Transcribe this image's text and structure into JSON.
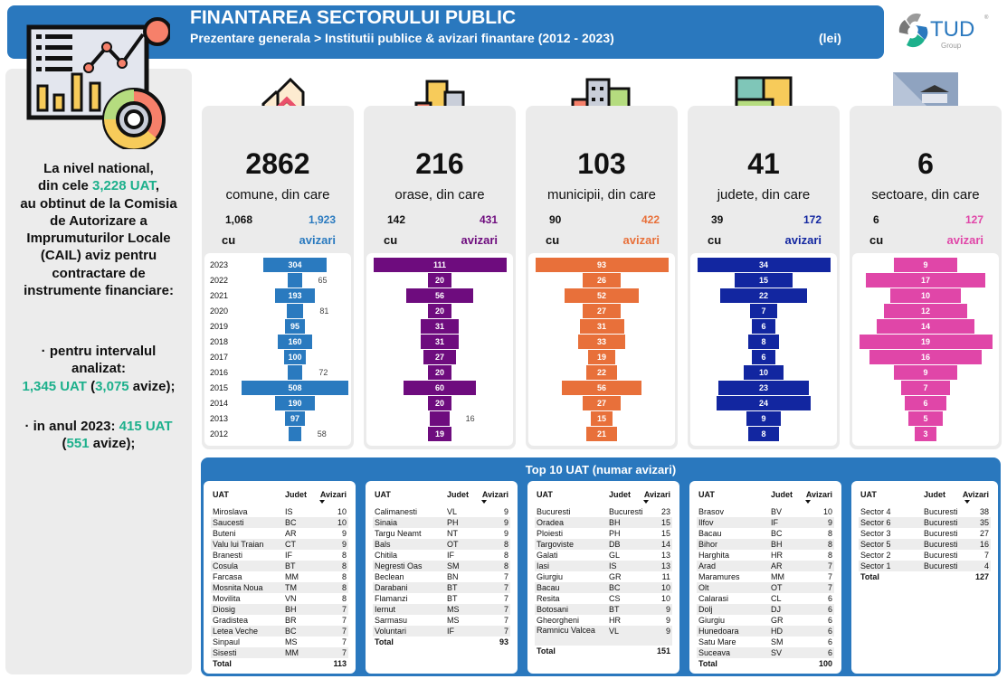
{
  "header": {
    "title": "FINANTAREA SECTORULUI PUBLIC",
    "subtitle": "Prezentare generala > Institutii publice & avizari finantare (2012 - 2023)",
    "unit": "(lei)"
  },
  "logo": {
    "text": "TUD",
    "sub": "Group",
    "reg": "®"
  },
  "left_panel": {
    "l1": "La nivel national,",
    "l2a": "din cele ",
    "l2b": "3,228 UAT",
    ",": ",",
    "l2c": ",",
    "l3": "au obtinut de la Comisia",
    "l4": "de Autorizare a",
    "l5": "Imprumuturilor Locale",
    "l6": "(CAIL) aviz pentru",
    "l7": "contractare de",
    "l8": "instrumente financiare:",
    "b1a": "· pentru intervalul",
    "b1b": "analizat:",
    "b1c": "1,345 UAT",
    "b1d": " (",
    "b1e": "3,075",
    "b1f": " avize);",
    "b2a": "· in anul 2023: ",
    "b2b": "415 UAT",
    "b2c": "(",
    "b2d": "551",
    "b2e": " avize);"
  },
  "cards": [
    {
      "icon": "houses-icon",
      "count": "2862",
      "label": "comune, din care",
      "cu_value": "1,068",
      "cu": "cu",
      "avizari_value": "1,923",
      "avizari": "avizari",
      "color": "#2A7ABF"
    },
    {
      "icon": "city-icon",
      "count": "216",
      "label": "orase, din care",
      "cu_value": "142",
      "cu": "cu",
      "avizari_value": "431",
      "avizari": "avizari",
      "color": "#6E0C7E"
    },
    {
      "icon": "buildings-icon",
      "count": "103",
      "label": "municipii, din care",
      "cu_value": "90",
      "cu": "cu",
      "avizari_value": "422",
      "avizari": "avizari",
      "color": "#E8703A"
    },
    {
      "icon": "map-icon",
      "count": "41",
      "label": "judete, din care",
      "cu_value": "39",
      "cu": "cu",
      "avizari_value": "172",
      "avizari": "avizari",
      "color": "#1226A0"
    },
    {
      "icon": "institution-icon",
      "count": "6",
      "label": "sectoare, din care",
      "cu_value": "6",
      "cu": "cu",
      "avizari_value": "127",
      "avizari": "avizari",
      "color": "#E046A8"
    }
  ],
  "chart_data": [
    {
      "type": "bar",
      "orientation": "horizontal-centered",
      "categories": [
        "2023",
        "2022",
        "2021",
        "2020",
        "2019",
        "2018",
        "2017",
        "2016",
        "2015",
        "2014",
        "2013",
        "2012"
      ],
      "values": [
        304,
        65,
        193,
        81,
        95,
        160,
        100,
        72,
        508,
        190,
        97,
        58
      ]
    },
    {
      "type": "bar",
      "orientation": "horizontal-centered",
      "categories": [
        "2023",
        "2022",
        "2021",
        "2020",
        "2019",
        "2018",
        "2017",
        "2016",
        "2015",
        "2014",
        "2013",
        "2012"
      ],
      "values": [
        111,
        20,
        56,
        20,
        31,
        31,
        27,
        20,
        60,
        20,
        16,
        19
      ]
    },
    {
      "type": "bar",
      "orientation": "horizontal-centered",
      "categories": [
        "2023",
        "2022",
        "2021",
        "2020",
        "2019",
        "2018",
        "2017",
        "2016",
        "2015",
        "2014",
        "2013",
        "2012"
      ],
      "values": [
        93,
        26,
        52,
        27,
        31,
        33,
        19,
        22,
        56,
        27,
        15,
        21
      ]
    },
    {
      "type": "bar",
      "orientation": "horizontal-centered",
      "categories": [
        "2023",
        "2022",
        "2021",
        "2020",
        "2019",
        "2018",
        "2017",
        "2016",
        "2015",
        "2014",
        "2013",
        "2012"
      ],
      "values": [
        34,
        15,
        22,
        7,
        6,
        8,
        6,
        10,
        23,
        24,
        9,
        8
      ]
    },
    {
      "type": "bar",
      "orientation": "horizontal-centered",
      "categories": [
        "2023",
        "2022",
        "2021",
        "2020",
        "2019",
        "2018",
        "2017",
        "2016",
        "2015",
        "2014",
        "2013",
        "2012"
      ],
      "values": [
        9,
        17,
        10,
        12,
        14,
        19,
        16,
        9,
        7,
        6,
        5,
        3
      ]
    }
  ],
  "top10": {
    "title": "Top 10 UAT (numar avizari)",
    "headers": [
      "UAT",
      "Judet",
      "Avizari"
    ],
    "total_label": "Total",
    "tables": [
      {
        "rows": [
          [
            "Miroslava",
            "IS",
            "10"
          ],
          [
            "Saucesti",
            "BC",
            "10"
          ],
          [
            "Buteni",
            "AR",
            "9"
          ],
          [
            "Valu lui Traian",
            "CT",
            "9"
          ],
          [
            "Branesti",
            "IF",
            "8"
          ],
          [
            "Cosula",
            "BT",
            "8"
          ],
          [
            "Farcasa",
            "MM",
            "8"
          ],
          [
            "Mosnita Noua",
            "TM",
            "8"
          ],
          [
            "Movilita",
            "VN",
            "8"
          ],
          [
            "Diosig",
            "BH",
            "7"
          ],
          [
            "Gradistea",
            "BR",
            "7"
          ],
          [
            "Letea Veche",
            "BC",
            "7"
          ],
          [
            "Sinpaul",
            "MS",
            "7"
          ],
          [
            "Sisesti",
            "MM",
            "7"
          ]
        ],
        "total": "113"
      },
      {
        "rows": [
          [
            "Calimanesti",
            "VL",
            "9"
          ],
          [
            "Sinaia",
            "PH",
            "9"
          ],
          [
            "Targu Neamt",
            "NT",
            "9"
          ],
          [
            "Bals",
            "OT",
            "8"
          ],
          [
            "Chitila",
            "IF",
            "8"
          ],
          [
            "Negresti Oas",
            "SM",
            "8"
          ],
          [
            "Beclean",
            "BN",
            "7"
          ],
          [
            "Darabani",
            "BT",
            "7"
          ],
          [
            "Flamanzi",
            "BT",
            "7"
          ],
          [
            "Iernut",
            "MS",
            "7"
          ],
          [
            "Sarmasu",
            "MS",
            "7"
          ],
          [
            "Voluntari",
            "IF",
            "7"
          ]
        ],
        "total": "93"
      },
      {
        "rows": [
          [
            "Bucuresti",
            "Bucuresti",
            "23"
          ],
          [
            "Oradea",
            "BH",
            "15"
          ],
          [
            "Ploiesti",
            "PH",
            "15"
          ],
          [
            "Targoviste",
            "DB",
            "14"
          ],
          [
            "Galati",
            "GL",
            "13"
          ],
          [
            "Iasi",
            "IS",
            "13"
          ],
          [
            "Giurgiu",
            "GR",
            "11"
          ],
          [
            "Bacau",
            "BC",
            "10"
          ],
          [
            "Resita",
            "CS",
            "10"
          ],
          [
            "Botosani",
            "BT",
            "9"
          ],
          [
            "Gheorgheni",
            "HR",
            "9"
          ],
          [
            "Ramnicu Valcea",
            "VL",
            "9"
          ]
        ],
        "total": "151"
      },
      {
        "rows": [
          [
            "Brasov",
            "BV",
            "10"
          ],
          [
            "Ilfov",
            "IF",
            "9"
          ],
          [
            "Bacau",
            "BC",
            "8"
          ],
          [
            "Bihor",
            "BH",
            "8"
          ],
          [
            "Harghita",
            "HR",
            "8"
          ],
          [
            "Arad",
            "AR",
            "7"
          ],
          [
            "Maramures",
            "MM",
            "7"
          ],
          [
            "Olt",
            "OT",
            "7"
          ],
          [
            "Calarasi",
            "CL",
            "6"
          ],
          [
            "Dolj",
            "DJ",
            "6"
          ],
          [
            "Giurgiu",
            "GR",
            "6"
          ],
          [
            "Hunedoara",
            "HD",
            "6"
          ],
          [
            "Satu Mare",
            "SM",
            "6"
          ],
          [
            "Suceava",
            "SV",
            "6"
          ]
        ],
        "total": "100"
      },
      {
        "rows": [
          [
            "Sector 4",
            "Bucuresti",
            "38"
          ],
          [
            "Sector 6",
            "Bucuresti",
            "35"
          ],
          [
            "Sector 3",
            "Bucuresti",
            "27"
          ],
          [
            "Sector 5",
            "Bucuresti",
            "16"
          ],
          [
            "Sector 2",
            "Bucuresti",
            "7"
          ],
          [
            "Sector 1",
            "Bucuresti",
            "4"
          ]
        ],
        "total": "127"
      }
    ]
  }
}
